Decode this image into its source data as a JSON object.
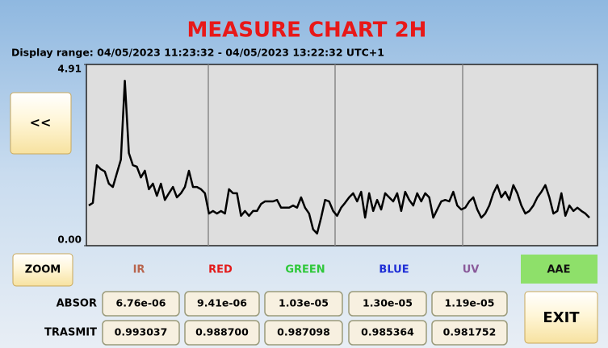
{
  "title": "MEASURE CHART 2H",
  "display_range": "Display range: 04/05/2023 11:23:32 - 04/05/2023 13:22:32 UTC+1",
  "buttons": {
    "back": "<<",
    "zoom": "ZOOM",
    "exit": "EXIT"
  },
  "channels": [
    {
      "name": "IR",
      "color": "#b8654e"
    },
    {
      "name": "RED",
      "color": "#e31b1b"
    },
    {
      "name": "GREEN",
      "color": "#2fc83a"
    },
    {
      "name": "BLUE",
      "color": "#1f2fd6"
    },
    {
      "name": "UV",
      "color": "#8a5a9a"
    },
    {
      "name": "AAE",
      "color": "#111111"
    }
  ],
  "rows": [
    {
      "label": "ABSOR",
      "values": [
        "6.76e-06",
        "9.41e-06",
        "1.03e-05",
        "1.30e-05",
        "1.19e-05"
      ]
    },
    {
      "label": "TRASMIT",
      "values": [
        "0.993037",
        "0.988700",
        "0.987098",
        "0.985364",
        "0.981752"
      ]
    }
  ],
  "chart_data": {
    "type": "line",
    "color": "#000000",
    "ylim": [
      0,
      4.91
    ],
    "yticks": [
      {
        "value": 0,
        "label": "0.00"
      },
      4.91
    ],
    "values": [
      1.09,
      1.16,
      2.18,
      2.07,
      2.01,
      1.68,
      1.59,
      1.96,
      2.33,
      4.47,
      2.51,
      2.18,
      2.14,
      1.85,
      2.03,
      1.53,
      1.68,
      1.35,
      1.68,
      1.24,
      1.42,
      1.59,
      1.31,
      1.42,
      1.59,
      2.03,
      1.59,
      1.59,
      1.53,
      1.42,
      0.87,
      0.94,
      0.87,
      0.94,
      0.87,
      1.53,
      1.42,
      1.42,
      0.81,
      0.94,
      0.81,
      0.94,
      0.94,
      1.13,
      1.2,
      1.2,
      1.2,
      1.24,
      1.03,
      1.03,
      1.03,
      1.09,
      1.03,
      1.31,
      1.03,
      0.87,
      0.44,
      0.33,
      0.76,
      1.24,
      1.2,
      0.94,
      0.81,
      1.03,
      1.16,
      1.31,
      1.42,
      1.2,
      1.46,
      0.76,
      1.42,
      0.94,
      1.24,
      0.98,
      1.42,
      1.31,
      1.2,
      1.42,
      0.94,
      1.46,
      1.24,
      1.09,
      1.42,
      1.2,
      1.42,
      1.31,
      0.76,
      0.98,
      1.2,
      1.24,
      1.2,
      1.46,
      1.09,
      0.98,
      1.03,
      1.2,
      1.31,
      0.98,
      0.76,
      0.87,
      1.09,
      1.42,
      1.64,
      1.31,
      1.46,
      1.24,
      1.64,
      1.42,
      1.09,
      0.87,
      0.94,
      1.09,
      1.31,
      1.46,
      1.64,
      1.31,
      0.87,
      0.94,
      1.42,
      0.81,
      1.09,
      0.94,
      1.03,
      0.94,
      0.87,
      0.76
    ]
  }
}
